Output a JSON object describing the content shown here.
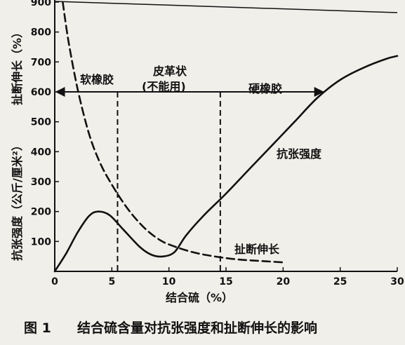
{
  "chart_data": {
    "type": "line",
    "x_axis": {
      "label": "结合硫（%）",
      "ticks": [
        0,
        5,
        10,
        15,
        20,
        25,
        30
      ],
      "range": [
        0,
        30
      ]
    },
    "y_axis": {
      "label_left": "抗张强度（公斤/厘米²）",
      "label_right": "扯断伸长（%）",
      "ticks": [
        100,
        200,
        300,
        400,
        500,
        600,
        700,
        800,
        900
      ],
      "range": [
        0,
        900
      ]
    },
    "series": [
      {
        "name": "抗张强度",
        "style": "solid",
        "x": [
          0,
          1,
          2,
          3,
          3.8,
          4.8,
          6,
          7.5,
          8.5,
          9.5,
          10.5,
          11.5,
          13,
          15,
          17,
          19,
          21,
          23,
          25,
          27,
          29,
          30
        ],
        "y": [
          0,
          60,
          130,
          185,
          200,
          188,
          140,
          80,
          55,
          50,
          65,
          120,
          185,
          260,
          340,
          420,
          500,
          580,
          640,
          680,
          710,
          720
        ]
      },
      {
        "name": "扯断伸长",
        "style": "dashed",
        "x": [
          0.7,
          1.2,
          2,
          3,
          4,
          5,
          6,
          7,
          8,
          9,
          10,
          12,
          14,
          16,
          18,
          20
        ],
        "y": [
          900,
          770,
          610,
          460,
          360,
          290,
          230,
          180,
          140,
          110,
          90,
          65,
          50,
          40,
          35,
          30
        ]
      }
    ],
    "regions": [
      {
        "label": "软橡胶"
      },
      {
        "label": "皮革状",
        "sublabel": "(不能用)"
      },
      {
        "label": "硬橡胶"
      }
    ],
    "region_boundaries": [
      5.5,
      14.5
    ],
    "region_arrow_y": 600,
    "annotations": [
      "抗张强度",
      "扯断伸长"
    ],
    "grid": false
  },
  "caption": {
    "figure_number": "图 1",
    "text": "结合硫含量对抗张强度和扯断伸长的影响"
  }
}
